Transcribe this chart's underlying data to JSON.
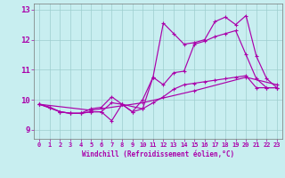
{
  "xlabel": "Windchill (Refroidissement éolien,°C)",
  "xlim": [
    -0.5,
    23.5
  ],
  "ylim": [
    8.7,
    13.2
  ],
  "xticks": [
    0,
    1,
    2,
    3,
    4,
    5,
    6,
    7,
    8,
    9,
    10,
    11,
    12,
    13,
    14,
    15,
    16,
    17,
    18,
    19,
    20,
    21,
    22,
    23
  ],
  "yticks": [
    9,
    10,
    11,
    12,
    13
  ],
  "bg_color": "#c8eef0",
  "line_color": "#aa00aa",
  "grid_color": "#9ecece",
  "s1_x": [
    0,
    1,
    2,
    3,
    4,
    5,
    6,
    7,
    8,
    9,
    10,
    11,
    12,
    13,
    14,
    15,
    16,
    17,
    18,
    19,
    20,
    21,
    22,
    23
  ],
  "s1_y": [
    9.85,
    9.75,
    9.6,
    9.55,
    9.55,
    9.6,
    9.6,
    9.9,
    9.85,
    9.6,
    9.7,
    9.9,
    10.1,
    10.35,
    10.5,
    10.55,
    10.6,
    10.65,
    10.7,
    10.75,
    10.8,
    10.4,
    10.4,
    10.4
  ],
  "s2_x": [
    0,
    5,
    10,
    15,
    20,
    23
  ],
  "s2_y": [
    9.85,
    9.65,
    9.9,
    10.3,
    10.75,
    10.5
  ],
  "s3_x": [
    0,
    1,
    2,
    3,
    4,
    5,
    6,
    7,
    8,
    9,
    10,
    11,
    12,
    13,
    14,
    15,
    16,
    17,
    18,
    19,
    20,
    21,
    22,
    23
  ],
  "s3_y": [
    9.85,
    9.75,
    9.6,
    9.55,
    9.55,
    9.6,
    9.6,
    9.3,
    9.85,
    9.6,
    10.0,
    10.75,
    12.55,
    12.2,
    11.85,
    11.9,
    12.0,
    12.6,
    12.75,
    12.5,
    12.8,
    11.45,
    10.7,
    10.4
  ],
  "s4_x": [
    0,
    2,
    3,
    4,
    5,
    6,
    7,
    8,
    10,
    11,
    12,
    13,
    14,
    15,
    16,
    17,
    18,
    19,
    20,
    21,
    22,
    23
  ],
  "s4_y": [
    9.85,
    9.6,
    9.55,
    9.55,
    9.7,
    9.75,
    10.1,
    9.85,
    9.7,
    10.75,
    10.5,
    10.9,
    10.95,
    11.85,
    11.95,
    12.1,
    12.2,
    12.3,
    11.5,
    10.7,
    10.4,
    10.4
  ]
}
